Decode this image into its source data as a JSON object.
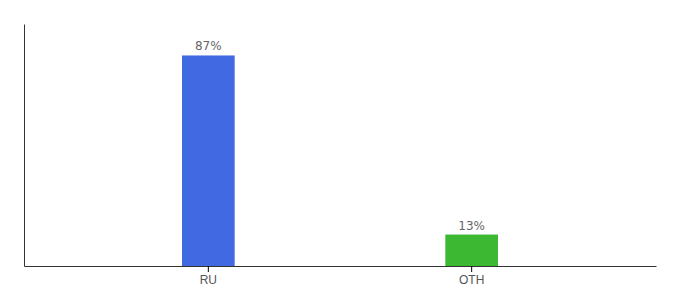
{
  "chart_data": {
    "type": "bar",
    "categories": [
      "RU",
      "OTH"
    ],
    "values": [
      87,
      13
    ],
    "colors": [
      "#4169e1",
      "#3cb832"
    ],
    "data_labels": true,
    "value_labels": [
      "87%",
      "13%"
    ],
    "ylim": [
      0,
      100
    ],
    "grid": false,
    "tick_labels": "x"
  }
}
